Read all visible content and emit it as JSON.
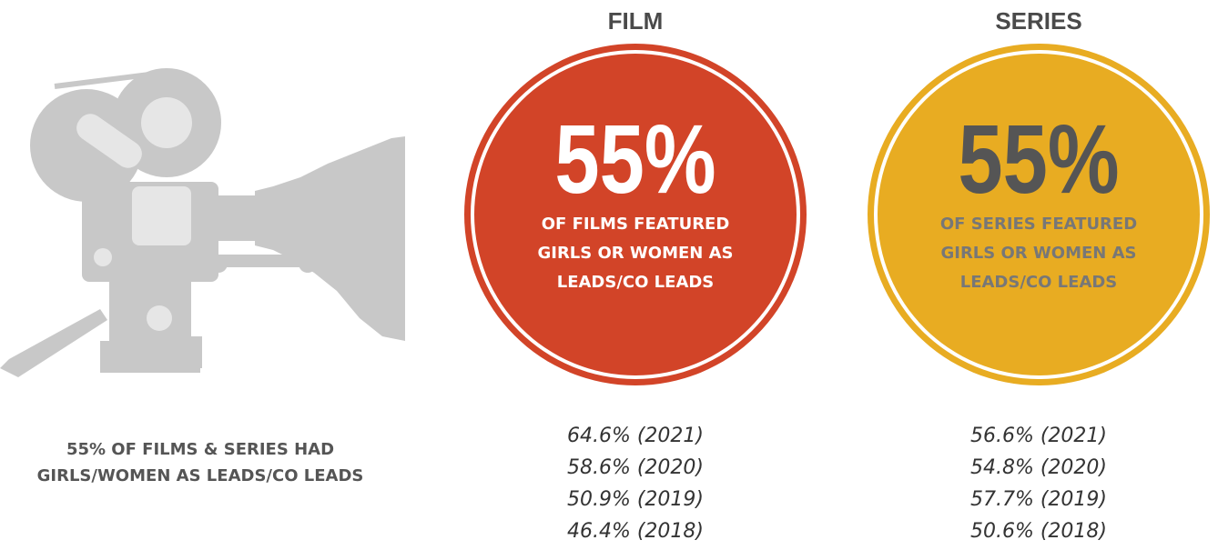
{
  "caption": [
    "55% OF FILMS & SERIES HAD",
    "GIRLS/WOMEN AS LEADS/CO LEADS"
  ],
  "columns": [
    {
      "heading": "FILM",
      "stat": "55%",
      "description": [
        "OF FILMS FEATURED",
        "GIRLS OR WOMEN AS",
        "LEADS/CO LEADS"
      ],
      "history": [
        "64.6% (2021)",
        "58.6% (2020)",
        "50.9% (2019)",
        "46.4% (2018)"
      ]
    },
    {
      "heading": "SERIES",
      "stat": "55%",
      "description": [
        "OF SERIES FEATURED",
        "GIRLS OR WOMEN AS",
        "LEADS/CO LEADS"
      ],
      "history": [
        "56.6% (2021)",
        "54.8% (2020)",
        "57.7% (2019)",
        "50.6% (2018)"
      ]
    }
  ]
}
